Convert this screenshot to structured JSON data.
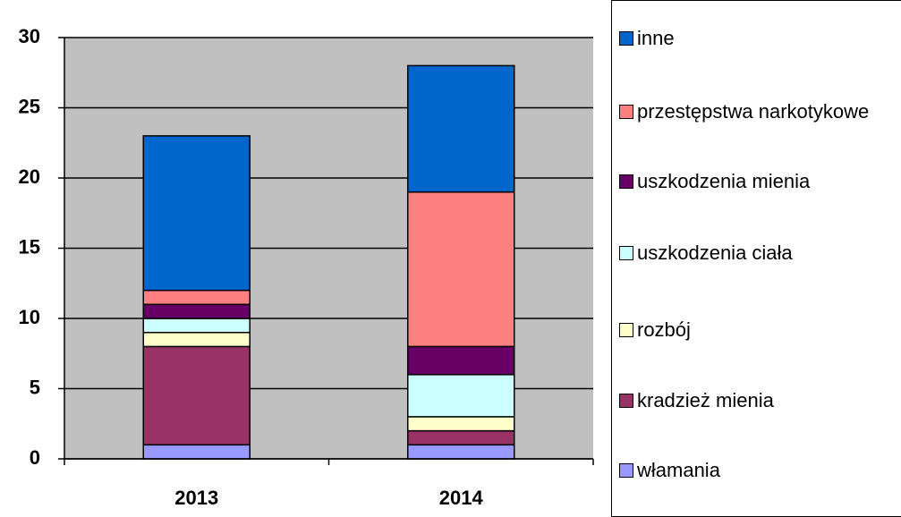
{
  "chart_data": {
    "type": "stacked_bar",
    "categories": [
      "2013",
      "2014"
    ],
    "series": [
      {
        "name": "włamania",
        "color": "#9999ff",
        "values": [
          1,
          1
        ]
      },
      {
        "name": "kradzież mienia",
        "color": "#993366",
        "values": [
          7,
          1
        ]
      },
      {
        "name": "rozbój",
        "color": "#ffffcc",
        "values": [
          1,
          1
        ]
      },
      {
        "name": "uszkodzenia ciała",
        "color": "#ccffff",
        "values": [
          1,
          3
        ]
      },
      {
        "name": "uszkodzenia mienia",
        "color": "#660066",
        "values": [
          1,
          2
        ]
      },
      {
        "name": "przestępstwa narkotykowe",
        "color": "#ff8080",
        "values": [
          1,
          11
        ]
      },
      {
        "name": "inne",
        "color": "#0066cc",
        "values": [
          11,
          9
        ]
      }
    ],
    "ylim": [
      0,
      30
    ],
    "yticks": [
      0,
      5,
      10,
      15,
      20,
      25,
      30
    ],
    "grid": true,
    "plot_background": "#c0c0c0"
  }
}
